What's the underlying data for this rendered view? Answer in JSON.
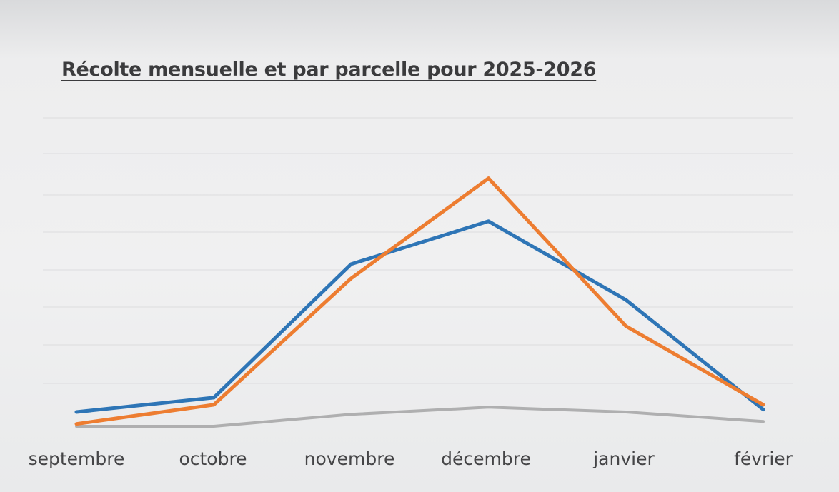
{
  "chart_data": {
    "type": "line",
    "title": "Récolte mensuelle et par parcelle pour 2025-2026",
    "xlabel": "",
    "ylabel": "",
    "categories": [
      "septembre",
      "octobre",
      "novembre",
      "décembre",
      "janvier",
      "février"
    ],
    "ylim": [
      0,
      100
    ],
    "grid": true,
    "series": [
      {
        "color": "#2e75b6",
        "values": [
          6,
          12,
          68,
          86,
          53,
          7
        ]
      },
      {
        "color": "#ed7d31",
        "values": [
          1,
          9,
          62,
          104,
          42,
          9
        ]
      },
      {
        "color": "#a5a5a5",
        "values": [
          0,
          0,
          5,
          8,
          6,
          2
        ]
      }
    ]
  }
}
